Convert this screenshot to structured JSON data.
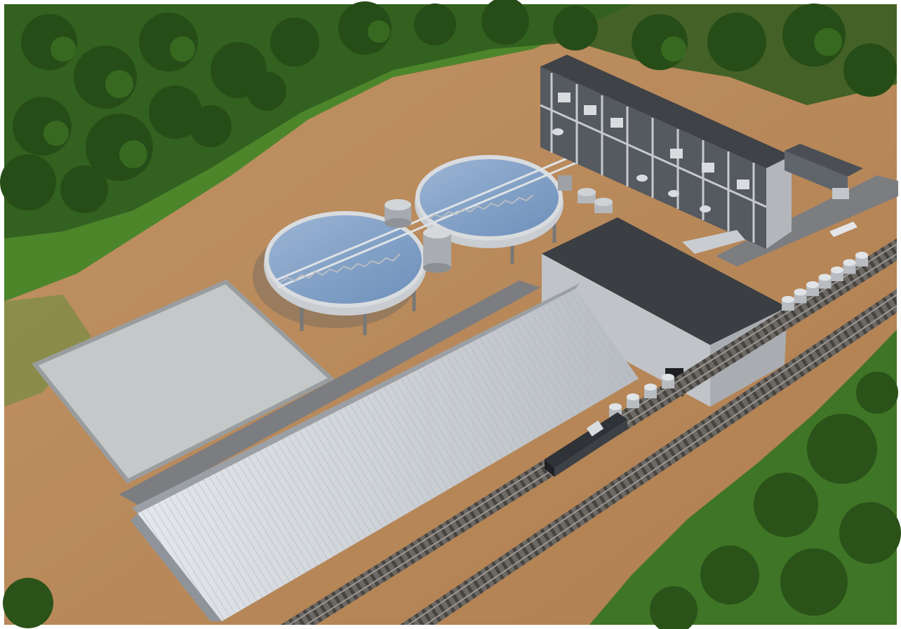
{
  "scene": {
    "kind": "aerial-3d-render",
    "subject": "industrial-processing-plant",
    "colors": {
      "ground": "#b98a5a",
      "ground_dark": "#9c6e43",
      "grass": "#4f8a2a",
      "trees": "#2f5a1e",
      "tank_water": "#7f9fc4",
      "tank_rim": "#c9ccd0",
      "roof_dark": "#4a4d52",
      "wall_light": "#c8cace",
      "shed_metal": "#d6dadf",
      "pad": "#c7c9c9",
      "rail_ballast": "#6e6a66",
      "rail_ties": "#3e3a36"
    },
    "objects": {
      "clarifier_tanks": 2,
      "storage_silos": 2,
      "railcars_upper_line": 7,
      "railcars_lower_line": 4,
      "locomotives": 1
    }
  }
}
